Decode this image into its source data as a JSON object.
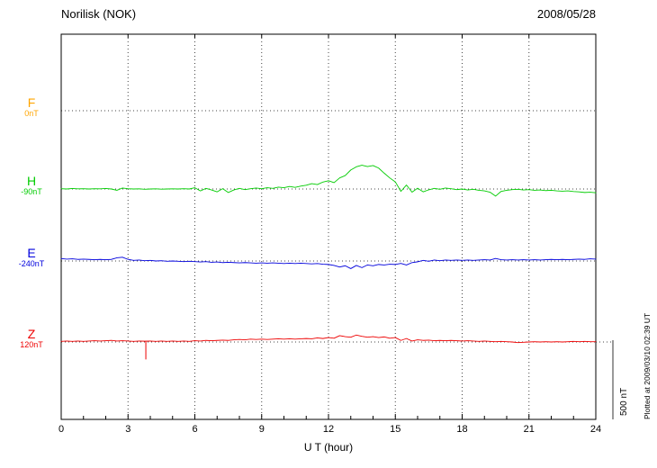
{
  "header": {
    "station": "Norilisk (NOK)",
    "date": "2008/05/28"
  },
  "axis": {
    "xlabel": "U T (hour)",
    "xmin": 0,
    "xmax": 24,
    "xticks": [
      0,
      3,
      6,
      9,
      12,
      15,
      18,
      21,
      24
    ]
  },
  "scale_bar": {
    "label": "500 nT",
    "nT": 500
  },
  "footer_note": "Plotted at 2009/03/10 02:39 UT",
  "chart_data": {
    "type": "line",
    "title": "Norilisk (NOK) magnetogram",
    "subtitle": "2008/05/28",
    "xlabel": "U T (hour)",
    "ylabel": "",
    "xlim": [
      0,
      24
    ],
    "grid": "dotted",
    "legend_position": "left-labels",
    "x_step_hours": 0.25,
    "series": [
      {
        "name": "F",
        "baseline_label": "0nT",
        "color": "#FFA500",
        "values": []
      },
      {
        "name": "H",
        "baseline_label": "-90nT",
        "color": "#00CC00",
        "values": [
          2,
          0,
          3,
          1,
          2,
          0,
          2,
          1,
          3,
          0,
          -8,
          6,
          2,
          0,
          1,
          -2,
          0,
          1,
          -1,
          0,
          1,
          0,
          2,
          0,
          8,
          -12,
          4,
          -6,
          -18,
          2,
          -22,
          -6,
          4,
          -4,
          2,
          6,
          2,
          8,
          4,
          12,
          8,
          16,
          10,
          18,
          24,
          34,
          28,
          44,
          52,
          40,
          70,
          85,
          120,
          140,
          150,
          142,
          148,
          132,
          100,
          70,
          45,
          -15,
          25,
          -20,
          5,
          -18,
          -5,
          4,
          -2,
          6,
          2,
          -4,
          0,
          -6,
          -2,
          -8,
          -12,
          -20,
          -45,
          -15,
          -8,
          -4,
          -2,
          -6,
          -4,
          -8,
          -6,
          -10,
          -8,
          -12,
          -14,
          -12,
          -16,
          -18,
          -22,
          -20,
          -24
        ]
      },
      {
        "name": "E",
        "baseline_label": "-240nT",
        "color": "#0000DD",
        "values": [
          15,
          12,
          14,
          10,
          12,
          10,
          8,
          10,
          8,
          10,
          20,
          24,
          10,
          4,
          6,
          2,
          4,
          0,
          2,
          -2,
          0,
          -2,
          -4,
          -2,
          -4,
          -6,
          -4,
          -8,
          -6,
          -10,
          -8,
          -10,
          -12,
          -10,
          -12,
          -14,
          -12,
          -14,
          -12,
          -14,
          -16,
          -14,
          -16,
          -14,
          -16,
          -18,
          -16,
          -20,
          -22,
          -28,
          -38,
          -30,
          -48,
          -28,
          -42,
          -25,
          -30,
          -22,
          -25,
          -20,
          -22,
          -15,
          -25,
          -10,
          -5,
          4,
          -2,
          6,
          2,
          6,
          4,
          6,
          4,
          6,
          4,
          6,
          8,
          6,
          16,
          8,
          6,
          8,
          6,
          8,
          6,
          8,
          6,
          8,
          10,
          8,
          10,
          8,
          10,
          12,
          10,
          14,
          12
        ]
      },
      {
        "name": "Z",
        "baseline_label": "120nT",
        "color": "#EE0000",
        "spike": {
          "x_hour": 3.8,
          "value": -110
        },
        "values": [
          4,
          6,
          4,
          6,
          4,
          6,
          8,
          6,
          8,
          10,
          6,
          8,
          6,
          4,
          6,
          5,
          6,
          4,
          6,
          4,
          6,
          4,
          6,
          4,
          8,
          6,
          10,
          8,
          10,
          12,
          10,
          14,
          16,
          14,
          18,
          16,
          18,
          16,
          18,
          20,
          18,
          20,
          18,
          20,
          22,
          20,
          26,
          22,
          28,
          24,
          40,
          34,
          30,
          44,
          36,
          30,
          34,
          28,
          32,
          24,
          28,
          10,
          22,
          6,
          14,
          10,
          12,
          8,
          10,
          8,
          10,
          8,
          6,
          8,
          6,
          4,
          6,
          4,
          2,
          4,
          2,
          0,
          -4,
          -2,
          0,
          2,
          0,
          2,
          0,
          2,
          0,
          2,
          4,
          2,
          4,
          2,
          2
        ]
      }
    ]
  }
}
